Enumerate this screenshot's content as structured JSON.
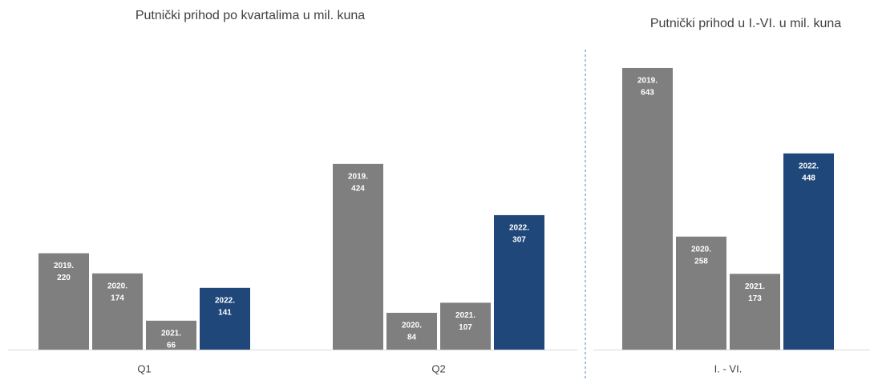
{
  "chart_data": [
    {
      "type": "bar",
      "title": "Putnički prihod po kvartalima u mil. kuna",
      "categories": [
        "Q1",
        "Q2"
      ],
      "series": [
        {
          "name": "2019.",
          "color": "#7f7f7f",
          "values": [
            220,
            424
          ]
        },
        {
          "name": "2020.",
          "color": "#7f7f7f",
          "values": [
            174,
            84
          ]
        },
        {
          "name": "2021.",
          "color": "#7f7f7f",
          "values": [
            66,
            107
          ]
        },
        {
          "name": "2022.",
          "color": "#1f477a",
          "values": [
            141,
            307
          ]
        }
      ],
      "ylim": [
        0,
        800
      ]
    },
    {
      "type": "bar",
      "title": "Putnički prihod u I.-VI. u mil. kuna",
      "categories": [
        "I. - VI."
      ],
      "series": [
        {
          "name": "2019.",
          "color": "#7f7f7f",
          "values": [
            643
          ]
        },
        {
          "name": "2020.",
          "color": "#7f7f7f",
          "values": [
            258
          ]
        },
        {
          "name": "2021.",
          "color": "#7f7f7f",
          "values": [
            173
          ]
        },
        {
          "name": "2022.",
          "color": "#1f477a",
          "values": [
            448
          ]
        }
      ],
      "ylim": [
        0,
        800
      ]
    }
  ]
}
